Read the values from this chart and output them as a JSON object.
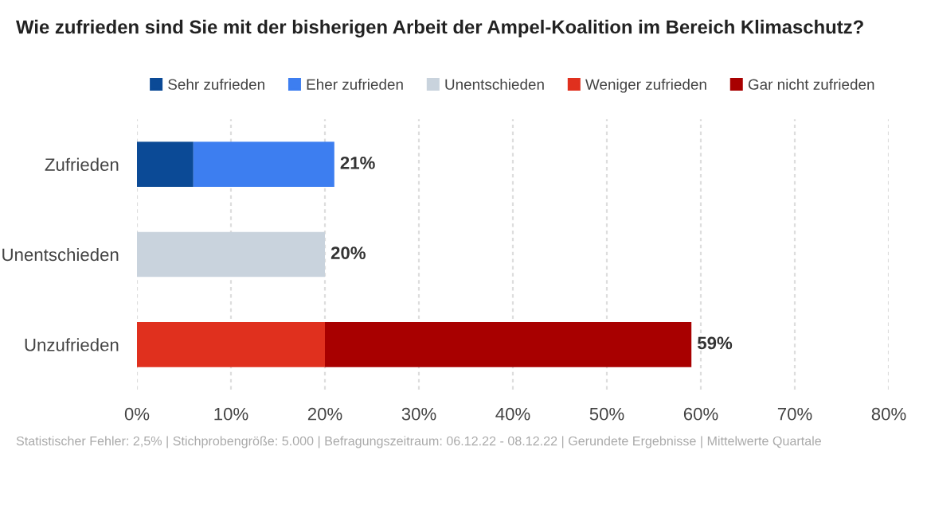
{
  "chart_data": {
    "type": "bar",
    "orientation": "horizontal",
    "stacked": true,
    "title": "Wie zufrieden sind Sie mit der bisherigen Arbeit der Ampel-Koalition im Bereich Klimaschutz?",
    "categories": [
      "Zufrieden",
      "Unentschieden",
      "Unzufrieden"
    ],
    "series": [
      {
        "name": "Sehr zufrieden",
        "color": "#0b4a96",
        "values": [
          6,
          null,
          null
        ]
      },
      {
        "name": "Eher zufrieden",
        "color": "#3d7ef0",
        "values": [
          15,
          null,
          null
        ]
      },
      {
        "name": "Unentschieden",
        "color": "#c9d3dd",
        "values": [
          null,
          20,
          null
        ]
      },
      {
        "name": "Weniger zufrieden",
        "color": "#e0301e",
        "values": [
          null,
          null,
          20
        ]
      },
      {
        "name": "Gar nicht zufrieden",
        "color": "#a80000",
        "values": [
          null,
          null,
          39
        ]
      }
    ],
    "totals": [
      "21%",
      "20%",
      "59%"
    ],
    "xlim": [
      0,
      80
    ],
    "xticks": [
      {
        "value": 0,
        "label": "0%"
      },
      {
        "value": 10,
        "label": "10%"
      },
      {
        "value": 20,
        "label": "20%"
      },
      {
        "value": 30,
        "label": "30%"
      },
      {
        "value": 40,
        "label": "40%"
      },
      {
        "value": 50,
        "label": "50%"
      },
      {
        "value": 60,
        "label": "60%"
      },
      {
        "value": 70,
        "label": "70%"
      },
      {
        "value": 80,
        "label": "80%"
      }
    ],
    "grid": "x",
    "legend": "top",
    "annotations": [
      "Statistischer Fehler: 2,5% | Stichprobengröße: 5.000 | Befragungszeitraum: 06.12.22 - 08.12.22 | Gerundete Ergebnisse | Mittelwerte Quartale"
    ]
  }
}
